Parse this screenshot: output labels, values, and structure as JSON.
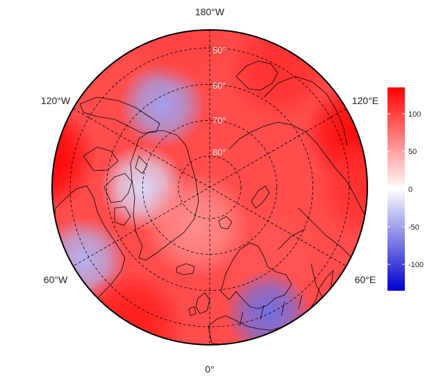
{
  "map": {
    "projection": "north-polar-stereographic",
    "lon_labels": {
      "top": "180°W",
      "bottom": "0°",
      "upper_left": "120°W",
      "upper_right": "120°E",
      "lower_left": "60°W",
      "lower_right": "60°E"
    },
    "lat_labels": [
      "50°",
      "60°",
      "70°",
      "80°"
    ],
    "colors": {
      "negative": "#0000cc",
      "zero": "#ffffff",
      "positive": "#ff0000",
      "coast": "#000000",
      "grid": "#000000"
    }
  },
  "colorbar": {
    "ticks": [
      "100",
      "50",
      "0",
      "-50",
      "-100"
    ],
    "tick_values": [
      100,
      50,
      0,
      -50,
      -100
    ],
    "range": [
      -135,
      135
    ]
  },
  "field": {
    "description_units": "data values",
    "blobs": [
      {
        "lon": 110,
        "lat": 45,
        "value": 130
      },
      {
        "lon": 150,
        "lat": 50,
        "value": 110
      },
      {
        "lon": 90,
        "lat": 45,
        "value": 110
      },
      {
        "lon": 40,
        "lat": 62,
        "value": 90
      },
      {
        "lon": 25,
        "lat": 50,
        "value": -75
      },
      {
        "lon": -60,
        "lat": 48,
        "value": -40
      },
      {
        "lon": -100,
        "lat": 42,
        "value": 135
      },
      {
        "lon": -150,
        "lat": 62,
        "value": -50
      },
      {
        "lon": -170,
        "lat": 45,
        "value": 100
      },
      {
        "lon": -30,
        "lat": 45,
        "value": 120
      },
      {
        "lon": -90,
        "lat": 70,
        "value": -20
      },
      {
        "lon": -20,
        "lat": 78,
        "value": 60
      }
    ],
    "base_value": 95
  }
}
